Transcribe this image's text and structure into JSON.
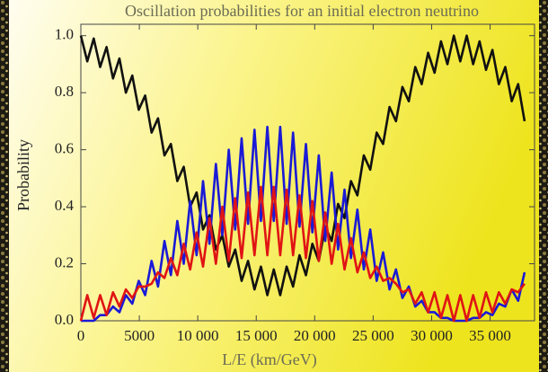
{
  "chart_data": {
    "type": "line",
    "title": "Oscillation probabilities for an initial electron neutrino",
    "x_label": "L/E (km/GeV)",
    "y_label": "Probability",
    "x": [
      0,
      550,
      1100,
      1650,
      2200,
      2750,
      3300,
      3850,
      4400,
      4950,
      5500,
      6050,
      6600,
      7150,
      7700,
      8250,
      8800,
      9350,
      9900,
      10450,
      11000,
      11550,
      12100,
      12650,
      13200,
      13750,
      14300,
      14850,
      15400,
      15950,
      16500,
      17050,
      17600,
      18150,
      18700,
      19250,
      19800,
      20350,
      20900,
      21450,
      22000,
      22550,
      23100,
      23650,
      24200,
      24750,
      25300,
      25850,
      26400,
      26950,
      27500,
      28050,
      28600,
      29150,
      29700,
      30250,
      30800,
      31350,
      31900,
      32450,
      33000,
      33550,
      34100,
      34650,
      35200,
      35750,
      36300,
      36850,
      37400,
      37950
    ],
    "series": [
      {
        "color": "#111111",
        "values": [
          1.0,
          0.91,
          0.99,
          0.89,
          0.96,
          0.85,
          0.92,
          0.8,
          0.86,
          0.74,
          0.79,
          0.66,
          0.71,
          0.58,
          0.62,
          0.49,
          0.54,
          0.4,
          0.45,
          0.32,
          0.37,
          0.25,
          0.3,
          0.19,
          0.25,
          0.14,
          0.21,
          0.11,
          0.19,
          0.09,
          0.18,
          0.09,
          0.19,
          0.12,
          0.23,
          0.16,
          0.27,
          0.21,
          0.33,
          0.28,
          0.41,
          0.36,
          0.49,
          0.44,
          0.58,
          0.53,
          0.66,
          0.62,
          0.75,
          0.7,
          0.82,
          0.77,
          0.89,
          0.83,
          0.94,
          0.87,
          0.98,
          0.9,
          1.0,
          0.91,
          1.0,
          0.9,
          0.98,
          0.88,
          0.95,
          0.83,
          0.89,
          0.77,
          0.83,
          0.7
        ]
      },
      {
        "color": "#1a1ad6",
        "values": [
          0.0,
          0.0,
          0.0,
          0.02,
          0.02,
          0.05,
          0.03,
          0.09,
          0.06,
          0.14,
          0.09,
          0.21,
          0.12,
          0.28,
          0.16,
          0.35,
          0.2,
          0.42,
          0.23,
          0.49,
          0.27,
          0.55,
          0.3,
          0.6,
          0.32,
          0.64,
          0.34,
          0.67,
          0.35,
          0.68,
          0.35,
          0.68,
          0.34,
          0.66,
          0.33,
          0.62,
          0.31,
          0.58,
          0.28,
          0.52,
          0.25,
          0.46,
          0.22,
          0.39,
          0.18,
          0.32,
          0.14,
          0.24,
          0.11,
          0.18,
          0.08,
          0.12,
          0.05,
          0.07,
          0.03,
          0.03,
          0.01,
          0.01,
          0.0,
          0.0,
          0.0,
          0.01,
          0.01,
          0.03,
          0.02,
          0.06,
          0.05,
          0.11,
          0.07,
          0.17
        ]
      },
      {
        "color": "#e01414",
        "values": [
          0.0,
          0.09,
          0.01,
          0.09,
          0.02,
          0.1,
          0.05,
          0.11,
          0.08,
          0.12,
          0.12,
          0.13,
          0.17,
          0.15,
          0.22,
          0.16,
          0.27,
          0.18,
          0.31,
          0.19,
          0.36,
          0.2,
          0.4,
          0.21,
          0.43,
          0.22,
          0.45,
          0.23,
          0.47,
          0.23,
          0.47,
          0.23,
          0.46,
          0.23,
          0.44,
          0.22,
          0.42,
          0.21,
          0.38,
          0.2,
          0.34,
          0.18,
          0.29,
          0.17,
          0.24,
          0.15,
          0.19,
          0.14,
          0.15,
          0.13,
          0.1,
          0.11,
          0.06,
          0.1,
          0.03,
          0.1,
          0.01,
          0.09,
          0.0,
          0.09,
          0.0,
          0.09,
          0.01,
          0.1,
          0.03,
          0.1,
          0.06,
          0.11,
          0.1,
          0.13
        ]
      }
    ],
    "xlim": [
      0,
      38800
    ],
    "ylim": [
      0,
      1.04
    ],
    "xticks": [
      0,
      5000,
      {
        "value": 10000,
        "label": "10 000"
      },
      {
        "value": 15000,
        "label": "15 000"
      },
      {
        "value": 20000,
        "label": "20 000"
      },
      {
        "value": 25000,
        "label": "25 000"
      },
      {
        "value": 30000,
        "label": "30 000"
      },
      {
        "value": 35000,
        "label": "35 000"
      }
    ],
    "yticks": [
      {
        "value": 0,
        "label": "0.0"
      },
      0.2,
      0.4,
      0.6,
      0.8,
      {
        "value": 1,
        "label": "1.0"
      }
    ],
    "grid": false
  }
}
